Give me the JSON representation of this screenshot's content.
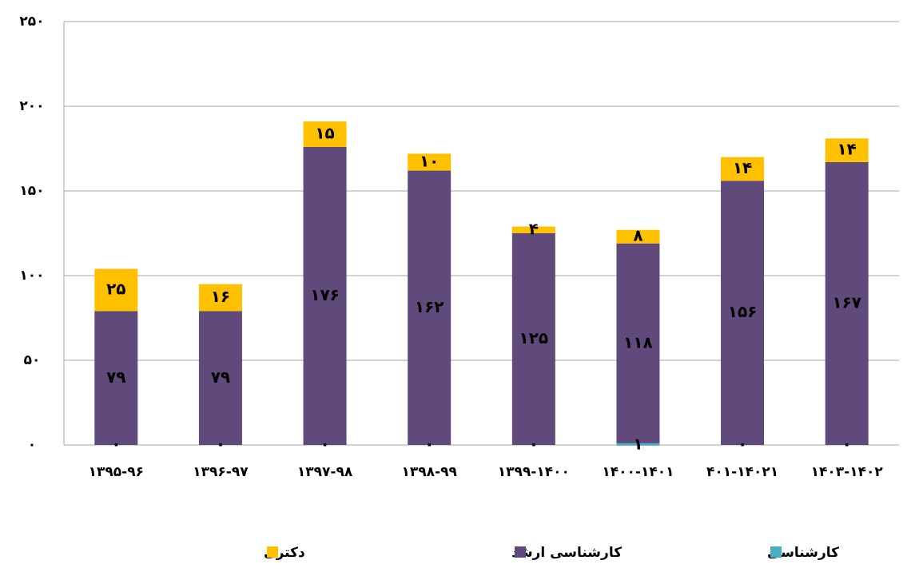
{
  "chart_data": {
    "type": "bar",
    "stacked": true,
    "categories": [
      "۱۳۹۵-۹۶",
      "۱۳۹۶-۹۷",
      "۱۳۹۷-۹۸",
      "۱۳۹۸-۹۹",
      "۱۳۹۹-۱۴۰۰",
      "۱۴۰۰-۱۴۰۱",
      "۴۰۱-۱۴۰۲۱",
      "۱۴۰۳-۱۴۰۲"
    ],
    "series": [
      {
        "name": "کارشناسی",
        "color": "#4bacc6",
        "values": [
          0,
          0,
          0,
          0,
          0,
          1,
          0,
          0
        ],
        "value_labels": [
          "۰",
          "۰",
          "۰",
          "۰",
          "۰",
          "۱",
          "۰",
          "۰"
        ]
      },
      {
        "name": "کارشناسی ارشد",
        "color": "#604a7b",
        "values": [
          79,
          79,
          176,
          162,
          125,
          118,
          156,
          167
        ],
        "value_labels": [
          "۷۹",
          "۷۹",
          "۱۷۶",
          "۱۶۲",
          "۱۲۵",
          "۱۱۸",
          "۱۵۶",
          "۱۶۷"
        ]
      },
      {
        "name": "دکتری",
        "color": "#ffc000",
        "values": [
          25,
          16,
          15,
          10,
          4,
          8,
          14,
          14
        ],
        "value_labels": [
          "۲۵",
          "۱۶",
          "۱۵",
          "۱۰",
          "۴",
          "۸",
          "۱۴",
          "۱۴"
        ]
      }
    ],
    "ylim": [
      0,
      250
    ],
    "yticks": [
      {
        "value": 0,
        "label": "۰"
      },
      {
        "value": 50,
        "label": "۵۰"
      },
      {
        "value": 100,
        "label": "۱۰۰"
      },
      {
        "value": 150,
        "label": "۱۵۰"
      },
      {
        "value": 200,
        "label": "۲۰۰"
      },
      {
        "value": 250,
        "label": "۲۵۰"
      }
    ],
    "grid": true,
    "legend": "bottom"
  }
}
